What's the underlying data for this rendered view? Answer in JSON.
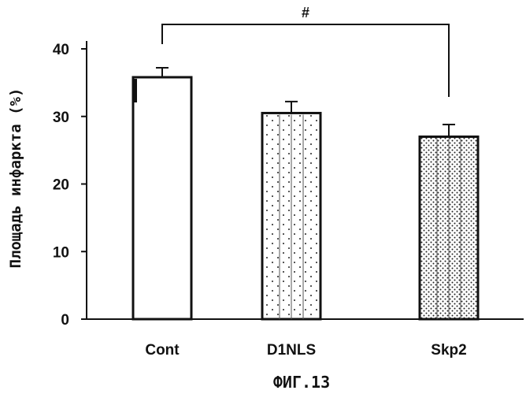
{
  "chart_data": {
    "type": "bar",
    "title": "",
    "xlabel": "",
    "ylabel": "Площадь инфаркта (%)",
    "ylim": [
      0,
      40
    ],
    "yticks": [
      "0",
      "10",
      "20",
      "30",
      "40"
    ],
    "categories": [
      "Cont",
      "D1NLS",
      "Skp2"
    ],
    "values": [
      35.8,
      30.5,
      27.0
    ],
    "errors": [
      1.4,
      1.7,
      1.8
    ],
    "patterns": [
      "solid-white",
      "sparse-dots",
      "dense-dots"
    ],
    "grid": false,
    "legend": "none",
    "annotation": {
      "text": "#",
      "from": "Cont",
      "to": "Skp2"
    },
    "caption": "ФИГ.13"
  },
  "colors": {
    "ink": "#111111",
    "fill": "#ffffff"
  }
}
